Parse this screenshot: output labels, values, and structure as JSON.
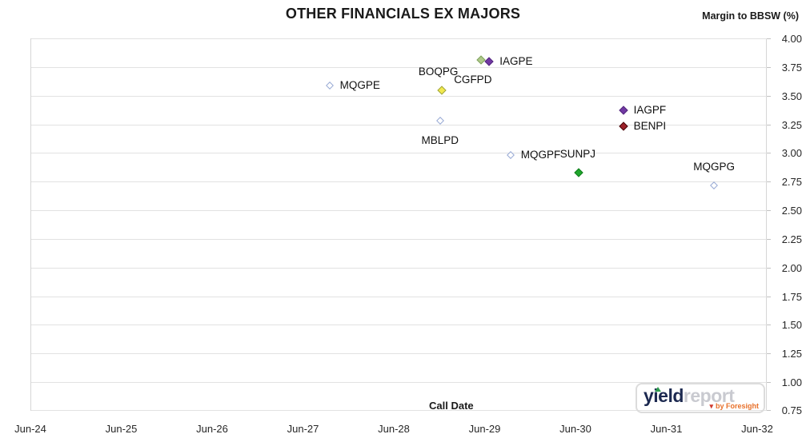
{
  "header": {
    "title": "OTHER FINANCIALS EX MAJORS",
    "y_axis_title": "Margin to BBSW (%)"
  },
  "chart_data": {
    "type": "scatter",
    "title": "OTHER FINANCIALS EX MAJORS",
    "xlabel": "Call Date",
    "ylabel": "Margin to BBSW (%)",
    "x_tick_labels": [
      "Jun-24",
      "Jun-25",
      "Jun-26",
      "Jun-27",
      "Jun-28",
      "Jun-29",
      "Jun-30",
      "Jun-31",
      "Jun-32"
    ],
    "x_domain": {
      "start_label": "Jun-24",
      "end_label": "Jun-32",
      "months_span": 96,
      "tick_interval_months": 12
    },
    "ylim": [
      0.75,
      4.0
    ],
    "y_tick_step": 0.25,
    "y_tick_labels": [
      "4.00",
      "3.75",
      "3.50",
      "3.25",
      "3.00",
      "2.75",
      "2.50",
      "2.25",
      "2.00",
      "1.75",
      "1.50",
      "1.25",
      "1.00",
      "0.75"
    ],
    "grid": "horizontal-only",
    "legend": "none (points labeled inline)",
    "marker_shape": "diamond",
    "points": [
      {
        "label": "MQGPE",
        "call_date_approx": "Sep-27",
        "months_after_jun24": 39.4,
        "margin_pct": 3.59,
        "marker_style": "open",
        "fill": "#ffffff",
        "stroke": "#97a9d4",
        "label_anchor": "right",
        "label_dx": 0
      },
      {
        "label": "BOQPG",
        "call_date_approx": "Dec-28",
        "months_after_jun24": 54.2,
        "margin_pct": 3.55,
        "marker_style": "filled",
        "fill": "#f2e94e",
        "stroke": "#9da33e",
        "label_anchor": "above",
        "label_dx": -4
      },
      {
        "label": "CGFPD",
        "call_date_approx": "May-29",
        "months_after_jun24": 59.4,
        "margin_pct": 3.81,
        "marker_style": "filled",
        "fill": "#afc98b",
        "stroke": "#7fa25c",
        "label_anchor": "below",
        "label_dx": -10
      },
      {
        "label": "IAGPE",
        "call_date_approx": "Jun-29",
        "months_after_jun24": 60.5,
        "margin_pct": 3.8,
        "marker_style": "filled",
        "fill": "#7138a3",
        "stroke": "#55297e",
        "label_anchor": "right",
        "label_dx": 0
      },
      {
        "label": "MBLPD",
        "call_date_approx": "Dec-28",
        "months_after_jun24": 54.0,
        "margin_pct": 3.28,
        "marker_style": "open",
        "fill": "#ffffff",
        "stroke": "#97a9d4",
        "label_anchor": "below",
        "label_dx": 0
      },
      {
        "label": "MQGPF",
        "call_date_approx": "Sep-29",
        "months_after_jun24": 63.3,
        "margin_pct": 2.98,
        "marker_style": "open",
        "fill": "#ffffff",
        "stroke": "#97a9d4",
        "label_anchor": "right",
        "label_dx": 0
      },
      {
        "label": "SUNPJ",
        "call_date_approx": "Jun-30",
        "months_after_jun24": 72.3,
        "margin_pct": 2.83,
        "marker_style": "filled",
        "fill": "#1fa62c",
        "stroke": "#147d1f",
        "label_anchor": "above",
        "label_dx": -1
      },
      {
        "label": "IAGPF",
        "call_date_approx": "Dec-30",
        "months_after_jun24": 78.2,
        "margin_pct": 3.37,
        "marker_style": "filled",
        "fill": "#7138a3",
        "stroke": "#55297e",
        "label_anchor": "right",
        "label_dx": 0
      },
      {
        "label": "BENPI",
        "call_date_approx": "Dec-30",
        "months_after_jun24": 78.2,
        "margin_pct": 3.23,
        "marker_style": "filled",
        "fill": "#9c2129",
        "stroke": "#45080c",
        "label_anchor": "right",
        "label_dx": 0
      },
      {
        "label": "MQGPG",
        "call_date_approx": "Dec-31",
        "months_after_jun24": 90.2,
        "margin_pct": 2.72,
        "marker_style": "open",
        "fill": "#ffffff",
        "stroke": "#97a9d4",
        "label_anchor": "above",
        "label_dx": 0
      }
    ]
  },
  "footer": {
    "x_axis_title": "Call Date"
  },
  "logo": {
    "part1": "yield",
    "part2": "report",
    "byline": "by Foresight",
    "colors": {
      "part1": "#1c2950",
      "part2": "#c9cad0",
      "byline": "#e8702a",
      "triangle_green": "#2e9e4f",
      "triangle_red": "#d03a2e"
    }
  },
  "colors": {
    "background": "#ffffff",
    "gridline": "#e2e2e2",
    "axis_border": "#d6d6d6",
    "title_text": "#1a1a1a",
    "tick_text": "#262626",
    "point_label_text": "#111111"
  }
}
